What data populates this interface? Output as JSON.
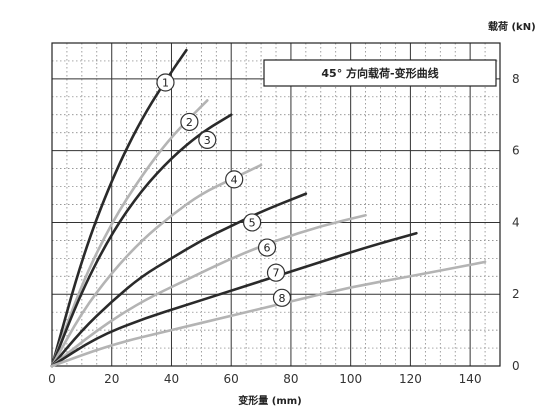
{
  "chart_data": {
    "type": "line",
    "title": "45° 方向载荷-变形曲线",
    "xlabel": "变形量 (mm)",
    "ylabel": "载荷 (kN)",
    "xlim": [
      0,
      150
    ],
    "ylim": [
      0,
      9
    ],
    "xticks": [
      0,
      20,
      40,
      60,
      80,
      100,
      120,
      140
    ],
    "yticks": [
      0,
      2,
      4,
      6,
      8
    ],
    "grid": true,
    "y_axis_side": "right",
    "series": [
      {
        "name": "1",
        "color": "#2a2a2a",
        "x": [
          0,
          10,
          20,
          30,
          40,
          45
        ],
        "y": [
          0,
          3.0,
          5.2,
          6.9,
          8.2,
          8.8
        ]
      },
      {
        "name": "2",
        "color": "#b4b4b4",
        "x": [
          0,
          10,
          20,
          30,
          40,
          52
        ],
        "y": [
          0,
          2.3,
          4.0,
          5.3,
          6.4,
          7.4
        ]
      },
      {
        "name": "3",
        "color": "#2a2a2a",
        "x": [
          0,
          10,
          20,
          30,
          40,
          50,
          60
        ],
        "y": [
          0,
          2.1,
          3.7,
          4.9,
          5.8,
          6.5,
          7.0
        ]
      },
      {
        "name": "4",
        "color": "#b4b4b4",
        "x": [
          0,
          10,
          20,
          30,
          40,
          50,
          60,
          70
        ],
        "y": [
          0,
          1.5,
          2.6,
          3.5,
          4.2,
          4.8,
          5.2,
          5.6
        ]
      },
      {
        "name": "5",
        "color": "#2a2a2a",
        "x": [
          0,
          10,
          20,
          30,
          40,
          50,
          60,
          70,
          85
        ],
        "y": [
          0,
          1.0,
          1.8,
          2.5,
          3.0,
          3.5,
          3.9,
          4.3,
          4.8
        ]
      },
      {
        "name": "6",
        "color": "#b4b4b4",
        "x": [
          0,
          15,
          30,
          45,
          60,
          75,
          90,
          105
        ],
        "y": [
          0,
          1.0,
          1.8,
          2.4,
          3.0,
          3.5,
          3.9,
          4.2
        ]
      },
      {
        "name": "7",
        "color": "#2a2a2a",
        "x": [
          0,
          15,
          30,
          45,
          60,
          75,
          90,
          105,
          122
        ],
        "y": [
          0,
          0.8,
          1.3,
          1.7,
          2.1,
          2.5,
          2.9,
          3.3,
          3.7
        ]
      },
      {
        "name": "8",
        "color": "#b4b4b4",
        "x": [
          0,
          20,
          40,
          60,
          80,
          100,
          120,
          145
        ],
        "y": [
          0,
          0.6,
          1.0,
          1.4,
          1.8,
          2.2,
          2.5,
          2.9
        ]
      }
    ],
    "markers": [
      {
        "label": "1",
        "x": 38,
        "y": 7.9
      },
      {
        "label": "2",
        "x": 46,
        "y": 6.8
      },
      {
        "label": "3",
        "x": 52,
        "y": 6.3
      },
      {
        "label": "4",
        "x": 61,
        "y": 5.2
      },
      {
        "label": "5",
        "x": 67,
        "y": 4.0
      },
      {
        "label": "6",
        "x": 72,
        "y": 3.3
      },
      {
        "label": "7",
        "x": 75,
        "y": 2.6
      },
      {
        "label": "8",
        "x": 77,
        "y": 1.9
      }
    ]
  }
}
